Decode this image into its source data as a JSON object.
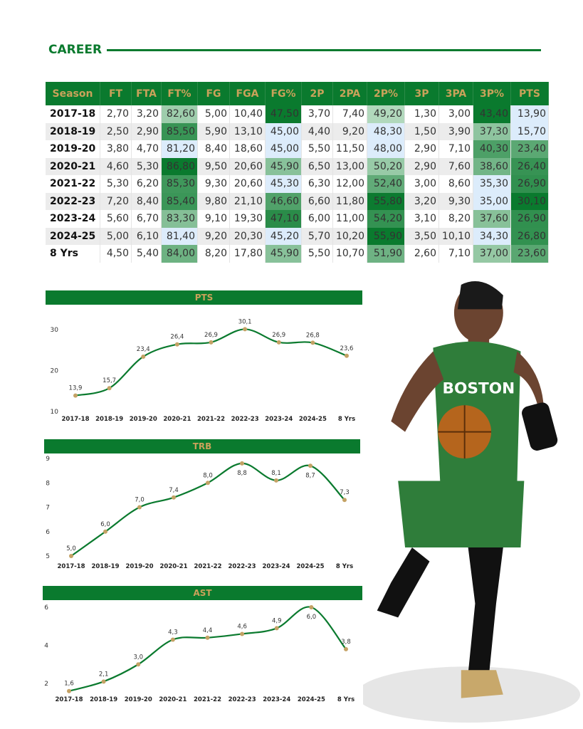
{
  "title": "CAREER",
  "table": {
    "headers": [
      "Season",
      "FT",
      "FTA",
      "FT%",
      "FG",
      "FGA",
      "FG%",
      "2P",
      "2PA",
      "2P%",
      "3P",
      "3PA",
      "3P%",
      "PTS"
    ],
    "heat_columns": [
      3,
      6,
      9,
      12,
      13
    ],
    "rows": [
      [
        "2017-18",
        "2,70",
        "3,20",
        "82,60",
        "5,00",
        "10,40",
        "47,50",
        "3,70",
        "7,40",
        "49,20",
        "1,30",
        "3,00",
        "43,40",
        "13,90"
      ],
      [
        "2018-19",
        "2,50",
        "2,90",
        "85,50",
        "5,90",
        "13,10",
        "45,00",
        "4,40",
        "9,20",
        "48,30",
        "1,50",
        "3,90",
        "37,30",
        "15,70"
      ],
      [
        "2019-20",
        "3,80",
        "4,70",
        "81,20",
        "8,40",
        "18,60",
        "45,00",
        "5,50",
        "11,50",
        "48,00",
        "2,90",
        "7,10",
        "40,30",
        "23,40"
      ],
      [
        "2020-21",
        "4,60",
        "5,30",
        "86,80",
        "9,50",
        "20,60",
        "45,90",
        "6,50",
        "13,00",
        "50,20",
        "2,90",
        "7,60",
        "38,60",
        "26,40"
      ],
      [
        "2021-22",
        "5,30",
        "6,20",
        "85,30",
        "9,30",
        "20,60",
        "45,30",
        "6,30",
        "12,00",
        "52,40",
        "3,00",
        "8,60",
        "35,30",
        "26,90"
      ],
      [
        "2022-23",
        "7,20",
        "8,40",
        "85,40",
        "9,80",
        "21,10",
        "46,60",
        "6,60",
        "11,80",
        "55,80",
        "3,20",
        "9,30",
        "35,00",
        "30,10"
      ],
      [
        "2023-24",
        "5,60",
        "6,70",
        "83,30",
        "9,10",
        "19,30",
        "47,10",
        "6,00",
        "11,00",
        "54,20",
        "3,10",
        "8,20",
        "37,60",
        "26,90"
      ],
      [
        "2024-25",
        "5,00",
        "6,10",
        "81,40",
        "9,20",
        "20,30",
        "45,20",
        "5,70",
        "10,20",
        "55,90",
        "3,50",
        "10,10",
        "34,30",
        "26,80"
      ],
      [
        "8 Yrs",
        "4,50",
        "5,40",
        "84,00",
        "8,20",
        "17,80",
        "45,90",
        "5,50",
        "10,70",
        "51,90",
        "2,60",
        "7,10",
        "37,00",
        "23,60"
      ]
    ]
  },
  "colors": {
    "green": "#0a7a2e",
    "gold": "#c9a25a",
    "marker": "#c4a265",
    "low": "#dcecfb"
  },
  "chart_data": [
    {
      "type": "line",
      "title": "PTS",
      "categories": [
        "2017-18",
        "2018-19",
        "2019-20",
        "2020-21",
        "2021-22",
        "2022-23",
        "2023-24",
        "2024-25",
        "8 Yrs"
      ],
      "values": [
        13.9,
        15.7,
        23.4,
        26.4,
        26.9,
        30.1,
        26.9,
        26.8,
        23.6
      ],
      "labels": [
        "13,9",
        "15,7",
        "23,4",
        "26,4",
        "26,9",
        "30,1",
        "26,9",
        "26,8",
        "23,6"
      ],
      "yticks": [
        "10",
        "20",
        "30"
      ],
      "ylim": [
        10,
        30
      ]
    },
    {
      "type": "line",
      "title": "TRB",
      "categories": [
        "2017-18",
        "2018-19",
        "2019-20",
        "2020-21",
        "2021-22",
        "2022-23",
        "2023-24",
        "2024-25",
        "8 Yrs"
      ],
      "values": [
        5.0,
        6.0,
        7.0,
        7.4,
        8.0,
        8.8,
        8.1,
        8.7,
        7.3
      ],
      "labels": [
        "5,0",
        "6,0",
        "7,0",
        "7,4",
        "8,0",
        "8,8",
        "8,1",
        "8,7",
        "7,3"
      ],
      "yticks": [
        "5",
        "6",
        "7",
        "8",
        "9"
      ],
      "ylim": [
        5,
        9
      ]
    },
    {
      "type": "line",
      "title": "AST",
      "categories": [
        "2017-18",
        "2018-19",
        "2019-20",
        "2020-21",
        "2021-22",
        "2022-23",
        "2023-24",
        "2024-25",
        "8 Yrs"
      ],
      "values": [
        1.6,
        2.1,
        3.0,
        4.3,
        4.4,
        4.6,
        4.9,
        6.0,
        3.8
      ],
      "labels": [
        "1,6",
        "2,1",
        "3,0",
        "4,3",
        "4,4",
        "4,6",
        "4,9",
        "6,0",
        "3,8"
      ],
      "yticks": [
        "2",
        "4",
        "6"
      ],
      "ylim": [
        2,
        6
      ]
    }
  ],
  "player": {
    "jersey_text": "BOSTON"
  }
}
